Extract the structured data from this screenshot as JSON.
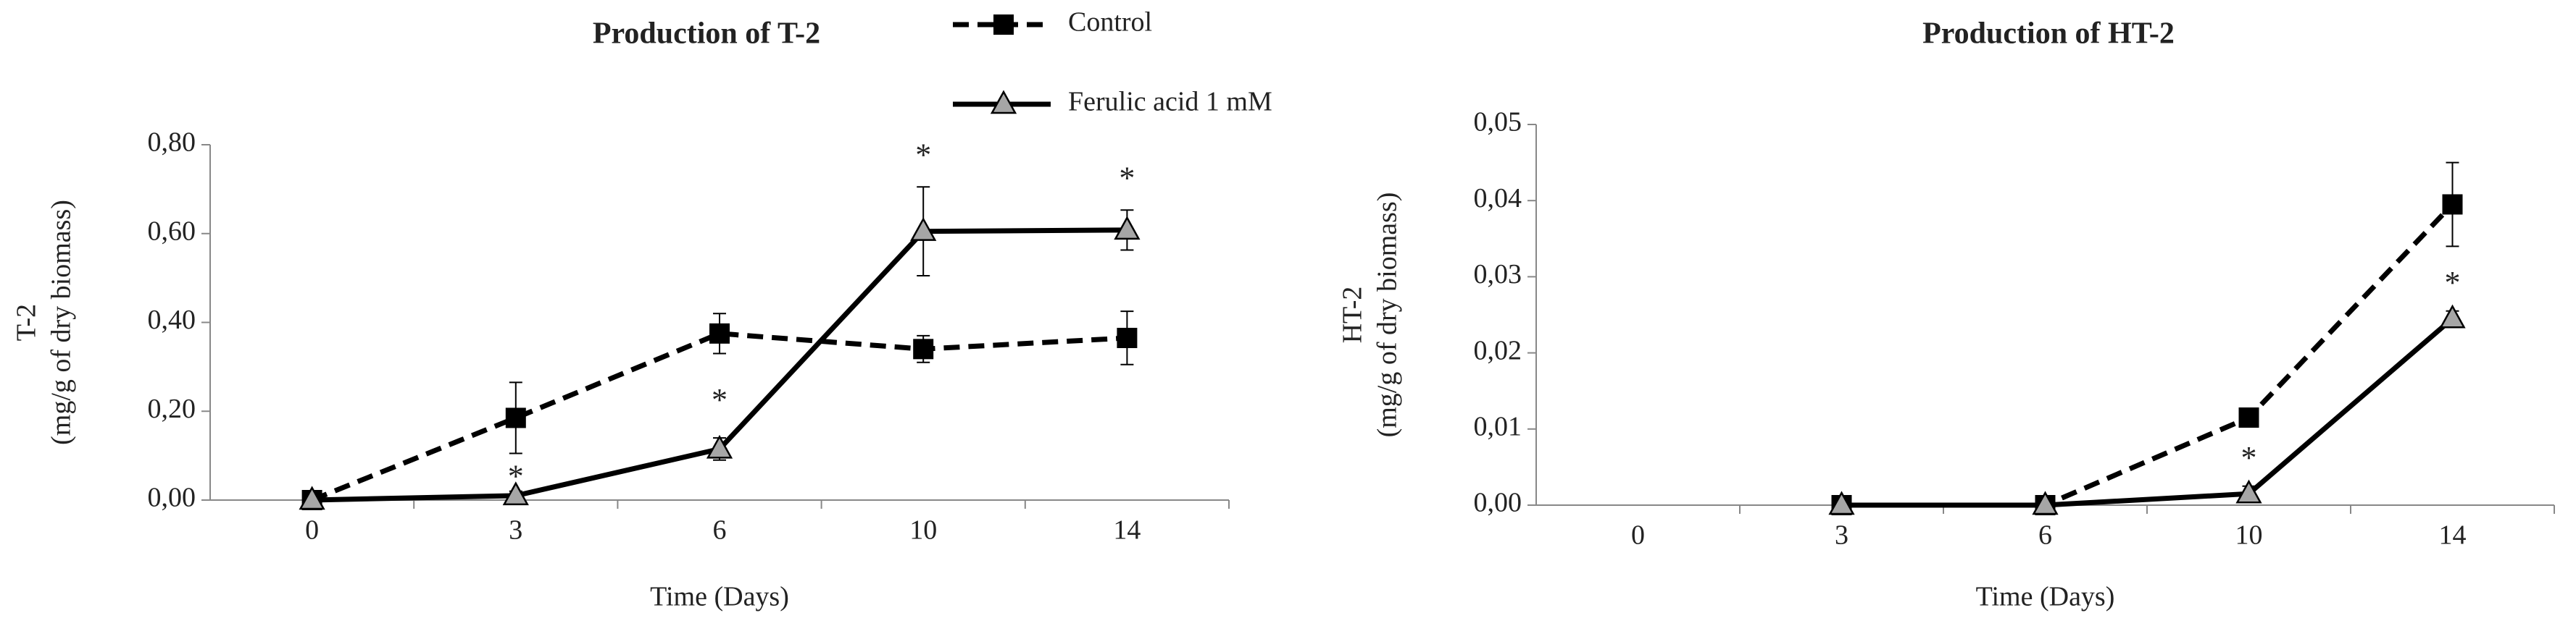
{
  "chart_data": [
    {
      "type": "line",
      "title": "Production of T-2",
      "xlabel": "Time (Days)",
      "ylabel": [
        "T-2",
        "(mg/g of dry biomass)"
      ],
      "categories": [
        "0",
        "3",
        "6",
        "10",
        "14"
      ],
      "series": [
        {
          "name": "Control",
          "color": "#000000",
          "marker": "square",
          "dash": true,
          "values": [
            0,
            0.185,
            0.375,
            0.34,
            0.365
          ],
          "errors": [
            0,
            0.08,
            0.045,
            0.03,
            0.06
          ]
        },
        {
          "name": "Ferulic acid 1 mM",
          "color": "#a6a6a6",
          "marker": "triangle",
          "dash": false,
          "values": [
            0,
            0.01,
            0.115,
            0.605,
            0.608
          ],
          "errors": [
            0,
            0.01,
            0.025,
            0.1,
            0.045
          ]
        }
      ],
      "ylim": [
        0,
        0.8
      ],
      "yticks": [
        {
          "value": 0,
          "label": "0,00"
        },
        {
          "value": 0.2,
          "label": "0,20"
        },
        {
          "value": 0.4,
          "label": "0,40"
        },
        {
          "value": 0.6,
          "label": "0,60"
        },
        {
          "value": 0.8,
          "label": "0,80"
        }
      ],
      "annotations": [
        {
          "text": "*",
          "category": 1
        },
        {
          "text": "*",
          "category": 2
        },
        {
          "text": "*",
          "category": 3
        },
        {
          "text": "*",
          "category": 4
        }
      ],
      "legend": "top"
    },
    {
      "type": "line",
      "title": "Production of HT-2",
      "xlabel": "Time (Days)",
      "ylabel": [
        "HT-2",
        "(mg/g of dry biomass)"
      ],
      "categories": [
        "0",
        "3",
        "6",
        "10",
        "14"
      ],
      "series": [
        {
          "name": "Control",
          "color": "#000000",
          "marker": "square",
          "dash": true,
          "values": [
            null,
            0,
            0,
            0.0115,
            0.0395
          ],
          "errors": [
            null,
            0,
            0,
            0.0005,
            0.0055
          ]
        },
        {
          "name": "Ferulic acid 1 mM",
          "color": "#a6a6a6",
          "marker": "triangle",
          "dash": false,
          "values": [
            null,
            0,
            0,
            0.0015,
            0.0245
          ],
          "errors": [
            null,
            0,
            0,
            0.001,
            0.001
          ]
        }
      ],
      "ylim": [
        0,
        0.05
      ],
      "yticks": [
        {
          "value": 0,
          "label": "0,00"
        },
        {
          "value": 0.01,
          "label": "0,01"
        },
        {
          "value": 0.02,
          "label": "0,02"
        },
        {
          "value": 0.03,
          "label": "0,03"
        },
        {
          "value": 0.04,
          "label": "0,04"
        },
        {
          "value": 0.05,
          "label": "0,05"
        }
      ],
      "annotations": [
        {
          "text": "*",
          "category": 3
        },
        {
          "text": "*",
          "category": 4
        }
      ]
    }
  ]
}
